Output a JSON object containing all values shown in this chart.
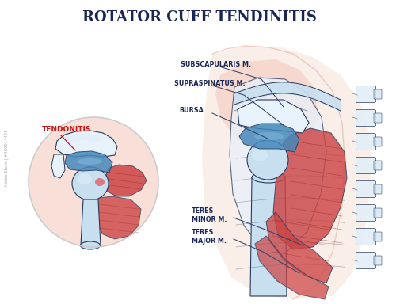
{
  "title": "ROTATOR CUFF TENDINITIS",
  "title_color": "#1a2756",
  "title_fontsize": 13,
  "bg_color": "#ffffff",
  "label_color": "#1a2756",
  "tendonitis_color": "#cc1111",
  "muscle_red": "#cc4444",
  "muscle_dark_red": "#aa3333",
  "bone_light": "#c8dff0",
  "bone_mid": "#a0c4e0",
  "bone_white": "#e8f2fb",
  "skin_pink": "#f5d0c0",
  "inflam_pink": "#f0b8a8",
  "inflam_light": "#f8ddd5",
  "bursa_blue": "#4488bb",
  "bursa_light": "#88aacc",
  "outline_dark": "#2a3a5a",
  "line_color": "#334466",
  "labels": {
    "subscapularis": "SUBSCAPULARIS M.",
    "supraspinatus": "SUPRASPINATUS M.",
    "bursa": "BURSA",
    "teres_minor": "TERES\nMINOR M.",
    "teres_major": "TERES\nMAJOR M.",
    "tendonitis": "TENDONITIS"
  }
}
